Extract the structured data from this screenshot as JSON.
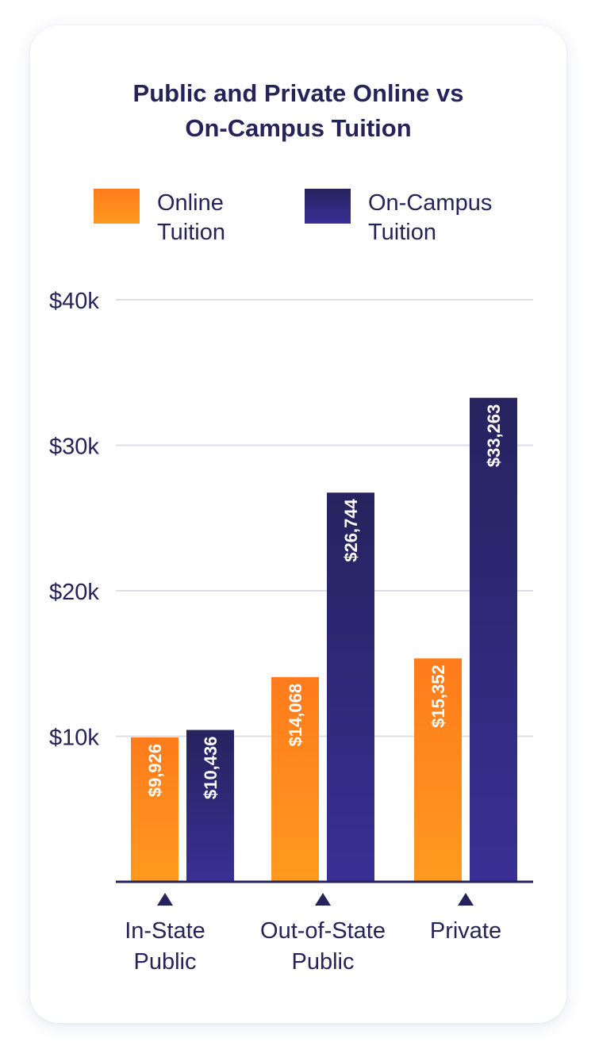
{
  "chart_data": {
    "type": "bar",
    "title_lines": [
      "Public and Private Online vs",
      "On-Campus Tuition"
    ],
    "categories": [
      [
        "In-State",
        "Public"
      ],
      [
        "Out-of-State",
        "Public"
      ],
      [
        "Private"
      ]
    ],
    "series": [
      {
        "name_lines": [
          "Online",
          "Tuition"
        ],
        "values": [
          9926,
          14068,
          15352
        ],
        "labels": [
          "$9,926",
          "$14,068",
          "$15,352"
        ],
        "color_top": "#ff7b1c",
        "color_bottom": "#ff9a1f"
      },
      {
        "name_lines": [
          "On-Campus",
          "Tuition"
        ],
        "values": [
          10436,
          26744,
          33263
        ],
        "labels": [
          "$10,436",
          "$26,744",
          "$33,263"
        ],
        "color_top": "#26235e",
        "color_bottom": "#3a2f95"
      }
    ],
    "y_ticks": [
      10000,
      20000,
      30000,
      40000
    ],
    "y_tick_labels": [
      "$10k",
      "$20k",
      "$30k",
      "$40k"
    ],
    "ylim": [
      0,
      40000
    ],
    "grid": true,
    "legend_position": "top"
  },
  "colors": {
    "text": "#252358",
    "axis": "#252358",
    "grid": "#dedee6"
  }
}
